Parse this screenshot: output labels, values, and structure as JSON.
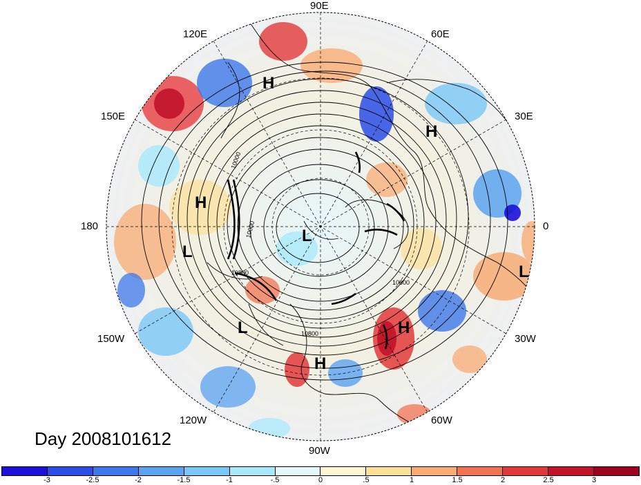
{
  "title": "Day 2008101612",
  "lon_labels": [
    {
      "text": "90E",
      "name": "lon-label-90e"
    },
    {
      "text": "60E",
      "name": "lon-label-60e"
    },
    {
      "text": "30E",
      "name": "lon-label-30e"
    },
    {
      "text": "0",
      "name": "lon-label-0"
    },
    {
      "text": "30W",
      "name": "lon-label-30w"
    },
    {
      "text": "60W",
      "name": "lon-label-60w"
    },
    {
      "text": "90W",
      "name": "lon-label-90w"
    },
    {
      "text": "120W",
      "name": "lon-label-120w"
    },
    {
      "text": "150W",
      "name": "lon-label-150w"
    },
    {
      "text": "180",
      "name": "lon-label-180"
    },
    {
      "text": "150E",
      "name": "lon-label-150e"
    },
    {
      "text": "120E",
      "name": "lon-label-120e"
    }
  ],
  "pressure_centers": [
    {
      "label": "H",
      "name": "high-center-siberia"
    },
    {
      "label": "H",
      "name": "high-center-europe"
    },
    {
      "label": "H",
      "name": "high-center-pacific"
    },
    {
      "label": "L",
      "name": "low-center-pole"
    },
    {
      "label": "L",
      "name": "low-center-pacific"
    },
    {
      "label": "L",
      "name": "low-center-africa"
    },
    {
      "label": "L",
      "name": "low-center-ne-pacific"
    },
    {
      "label": "H",
      "name": "high-center-atlantic"
    },
    {
      "label": "H",
      "name": "high-center-gulf"
    }
  ],
  "contour_labels": [
    "10000",
    "10000",
    "10800",
    "10800",
    "10800"
  ],
  "colorbar": {
    "labels": [
      "-3",
      "-2.5",
      "-2",
      "-1.5",
      "-1",
      "-.5",
      "0",
      ".5",
      "1",
      "1.5",
      "2",
      "2.5",
      "3"
    ],
    "colors": [
      "#1c0fd8",
      "#2a4ee6",
      "#3d78ea",
      "#5aa3f0",
      "#79c7f6",
      "#a9e8fb",
      "#e4f8fc",
      "#fdf6d2",
      "#fcdf98",
      "#f8ac74",
      "#f17352",
      "#e23a3a",
      "#c1132a",
      "#9e0020"
    ]
  }
}
